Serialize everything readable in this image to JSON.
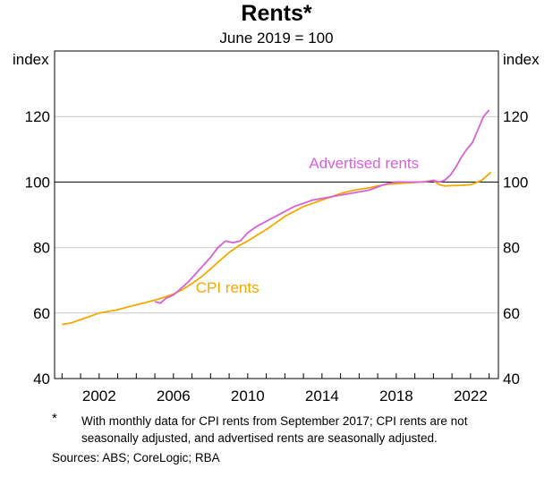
{
  "chart_data": {
    "type": "line",
    "title": "Rents*",
    "subtitle": "June 2019 = 100",
    "ylabel_left": "index",
    "ylabel_right": "index",
    "ylim": [
      40,
      140
    ],
    "xlim": [
      1999.6,
      2023.5
    ],
    "yticks": [
      40,
      60,
      80,
      100,
      120
    ],
    "xtick_labels": [
      "2002",
      "2006",
      "2010",
      "2014",
      "2018",
      "2022"
    ],
    "xtick_values": [
      2002,
      2006,
      2010,
      2014,
      2018,
      2022
    ],
    "reference_line": 100,
    "grid": true,
    "series": [
      {
        "name": "Advertised rents",
        "color": "#d75fd7",
        "x": [
          2005.0,
          2005.3,
          2005.6,
          2006.0,
          2006.4,
          2006.8,
          2007.2,
          2007.6,
          2008.0,
          2008.4,
          2008.8,
          2009.2,
          2009.6,
          2010.0,
          2010.5,
          2011.0,
          2011.5,
          2012.0,
          2012.5,
          2013.0,
          2013.5,
          2014.0,
          2014.5,
          2015.0,
          2015.5,
          2016.0,
          2016.5,
          2017.0,
          2017.5,
          2018.0,
          2018.5,
          2019.0,
          2019.5,
          2020.0,
          2020.3,
          2020.6,
          2020.9,
          2021.2,
          2021.5,
          2021.8,
          2022.1,
          2022.4,
          2022.7,
          2023.0
        ],
        "values": [
          63.5,
          63.0,
          64.5,
          65.5,
          67.5,
          69.5,
          72.0,
          74.5,
          77.0,
          80.0,
          82.0,
          81.5,
          82.0,
          84.5,
          86.5,
          88.0,
          89.5,
          91.0,
          92.5,
          93.5,
          94.5,
          95.0,
          95.5,
          96.0,
          96.5,
          97.0,
          97.5,
          98.5,
          99.5,
          100.0,
          100.0,
          100.0,
          100.0,
          100.5,
          100.0,
          100.5,
          102.0,
          104.5,
          107.5,
          110.0,
          112.0,
          116.0,
          120.0,
          122.0
        ]
      },
      {
        "name": "CPI rents",
        "color": "#f5a800",
        "x": [
          2000.0,
          2000.5,
          2001.0,
          2001.5,
          2002.0,
          2002.5,
          2003.0,
          2003.5,
          2004.0,
          2004.5,
          2005.0,
          2005.5,
          2006.0,
          2006.5,
          2007.0,
          2007.5,
          2008.0,
          2008.5,
          2009.0,
          2009.5,
          2010.0,
          2010.5,
          2011.0,
          2011.5,
          2012.0,
          2012.5,
          2013.0,
          2013.5,
          2014.0,
          2014.5,
          2015.0,
          2015.5,
          2016.0,
          2016.5,
          2017.0,
          2017.5,
          2018.0,
          2018.5,
          2019.0,
          2019.5,
          2020.0,
          2020.3,
          2020.6,
          2021.0,
          2021.5,
          2022.0,
          2022.3,
          2022.6,
          2022.9,
          2023.1
        ],
        "values": [
          56.5,
          57.0,
          58.0,
          59.0,
          60.0,
          60.5,
          61.0,
          61.8,
          62.5,
          63.2,
          64.0,
          64.8,
          65.8,
          67.2,
          69.0,
          71.0,
          73.5,
          76.0,
          78.5,
          80.5,
          82.0,
          83.8,
          85.5,
          87.5,
          89.5,
          91.0,
          92.5,
          93.5,
          94.5,
          95.5,
          96.5,
          97.2,
          97.8,
          98.2,
          98.8,
          99.3,
          99.5,
          99.7,
          99.9,
          100.1,
          100.5,
          99.2,
          98.8,
          98.9,
          99.0,
          99.2,
          99.8,
          100.5,
          102.0,
          103.0
        ]
      }
    ],
    "annotations": [
      {
        "text": "Advertised rents",
        "series": 0
      },
      {
        "text": "CPI rents",
        "series": 1
      }
    ]
  },
  "footnote": {
    "marker": "*",
    "text": "With monthly data for CPI rents from September 2017; CPI rents are not seasonally adjusted, and advertised rents are seasonally adjusted.",
    "sources": "Sources: ABS; CoreLogic; RBA"
  }
}
